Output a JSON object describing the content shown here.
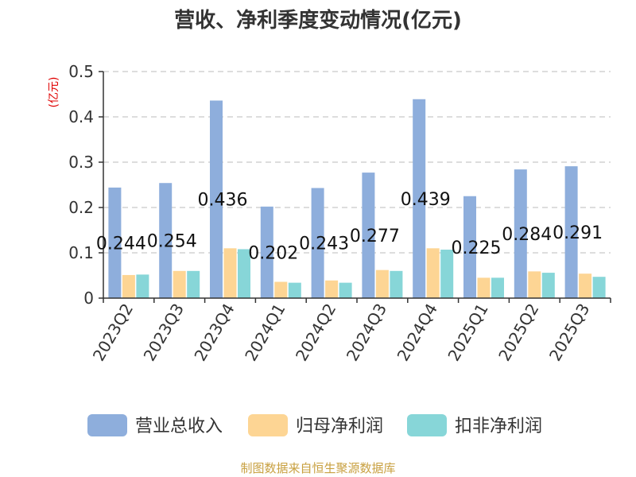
{
  "chart_data": {
    "type": "bar",
    "title": "营收、净利季度变动情况(亿元)",
    "ylabel": "(亿元)",
    "ylim": [
      0,
      0.5
    ],
    "yticks": [
      "0",
      "0.1",
      "0.2",
      "0.3",
      "0.4",
      "0.5"
    ],
    "ytick_values": [
      0,
      0.1,
      0.2,
      0.3,
      0.4,
      0.5
    ],
    "grid": true,
    "legend_position": "bottom",
    "categories": [
      "2023Q2",
      "2023Q3",
      "2023Q4",
      "2024Q1",
      "2024Q2",
      "2024Q3",
      "2024Q4",
      "2025Q1",
      "2025Q2",
      "2025Q3"
    ],
    "series": [
      {
        "name": "营业总收入",
        "color": "#8eaedc",
        "values": [
          0.244,
          0.254,
          0.436,
          0.202,
          0.243,
          0.277,
          0.439,
          0.225,
          0.284,
          0.291
        ],
        "labels": [
          "0.244",
          "0.254",
          "0.436",
          "0.202",
          "0.243",
          "0.277",
          "0.439",
          "0.225",
          "0.284",
          "0.291"
        ]
      },
      {
        "name": "归母净利润",
        "color": "#fdd594",
        "values": [
          0.051,
          0.06,
          0.11,
          0.036,
          0.039,
          0.062,
          0.11,
          0.045,
          0.059,
          0.054
        ]
      },
      {
        "name": "扣非净利润",
        "color": "#87d6d8",
        "values": [
          0.052,
          0.06,
          0.108,
          0.034,
          0.034,
          0.06,
          0.107,
          0.045,
          0.056,
          0.047
        ]
      }
    ]
  },
  "footer": {
    "source": "制图数据来自恒生聚源数据库"
  }
}
